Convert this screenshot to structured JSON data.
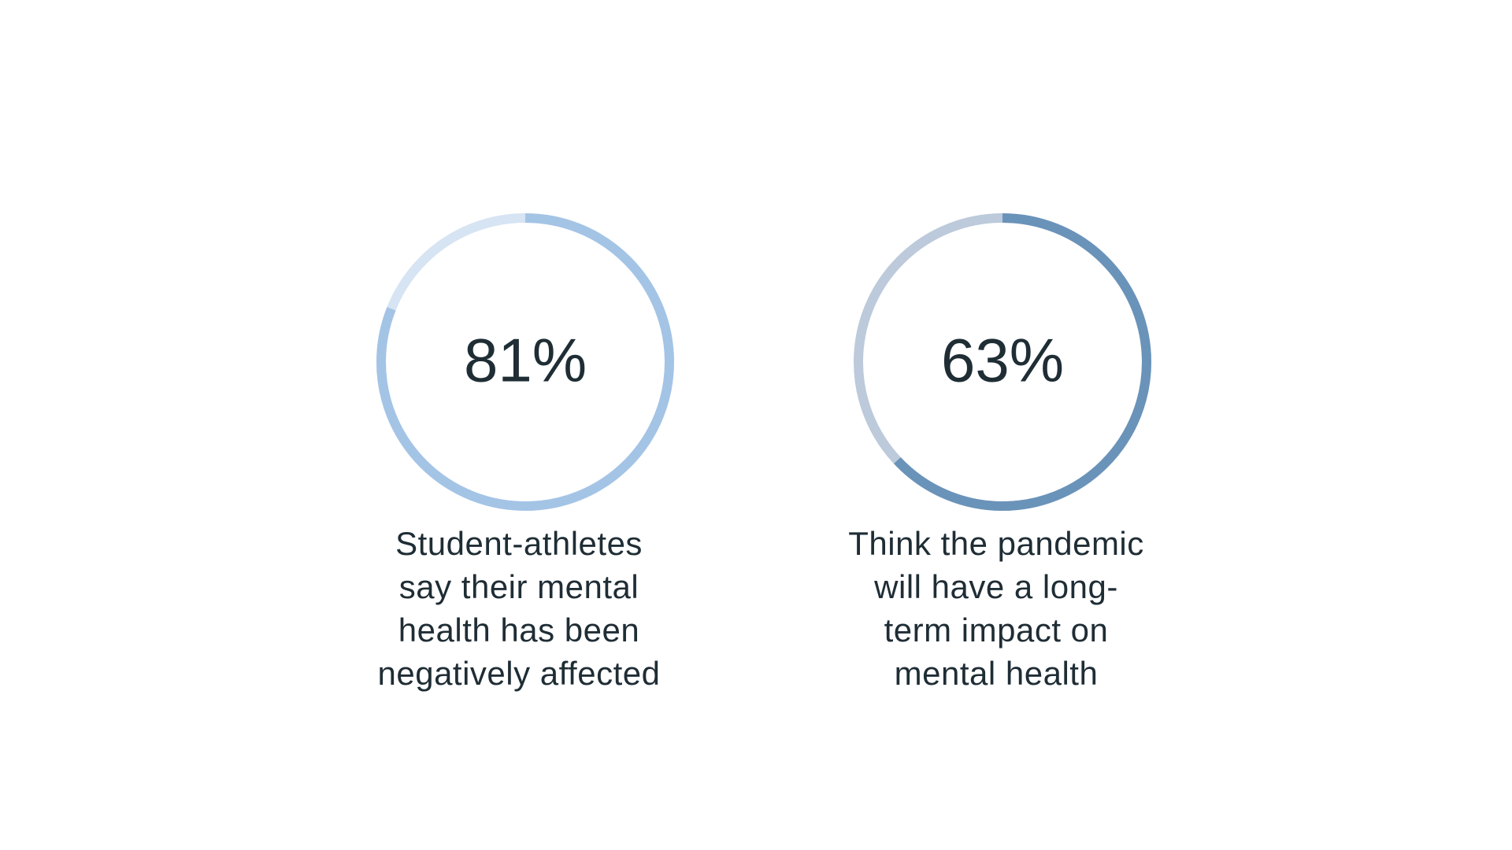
{
  "chart_data": [
    {
      "type": "ring",
      "values": [
        81
      ],
      "value_labels": [
        "81%"
      ],
      "color": "#a4c4e6",
      "track_color": "#d6e4f3",
      "caption": "Student-athletes say their mental health has been negatively affected"
    },
    {
      "type": "ring",
      "values": [
        63
      ],
      "value_labels": [
        "63%"
      ],
      "color": "#6a93b9",
      "track_color": "#bccadb",
      "caption": "Think the pandemic will have a long-term impact on mental health"
    }
  ]
}
